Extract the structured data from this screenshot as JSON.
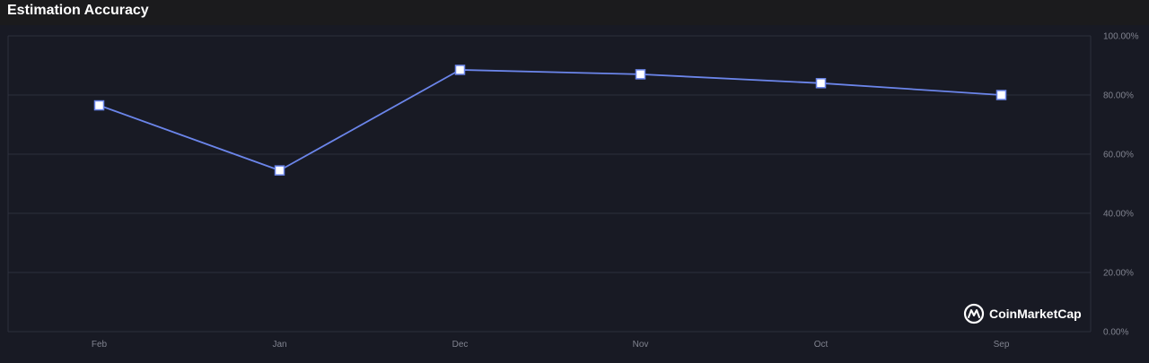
{
  "header": {
    "title": "Estimation Accuracy"
  },
  "watermark": {
    "text": "CoinMarketCap"
  },
  "colors": {
    "background": "#181a24",
    "grid": "#2d303d",
    "line": "#6b85ea",
    "marker_fill": "#ffffff"
  },
  "chart_data": {
    "type": "line",
    "title": "Estimation Accuracy",
    "xlabel": "",
    "ylabel": "",
    "categories": [
      "Feb",
      "Jan",
      "Dec",
      "Nov",
      "Oct",
      "Sep"
    ],
    "series": [
      {
        "values": [
          76.5,
          54.5,
          88.5,
          87.0,
          84.0,
          80.0
        ]
      }
    ],
    "ylim": [
      0,
      100
    ],
    "yticks": [
      "0.00%",
      "20.00%",
      "40.00%",
      "60.00%",
      "80.00%",
      "100.00%"
    ],
    "y_axis_position": "right",
    "grid": true,
    "marker": "square"
  }
}
